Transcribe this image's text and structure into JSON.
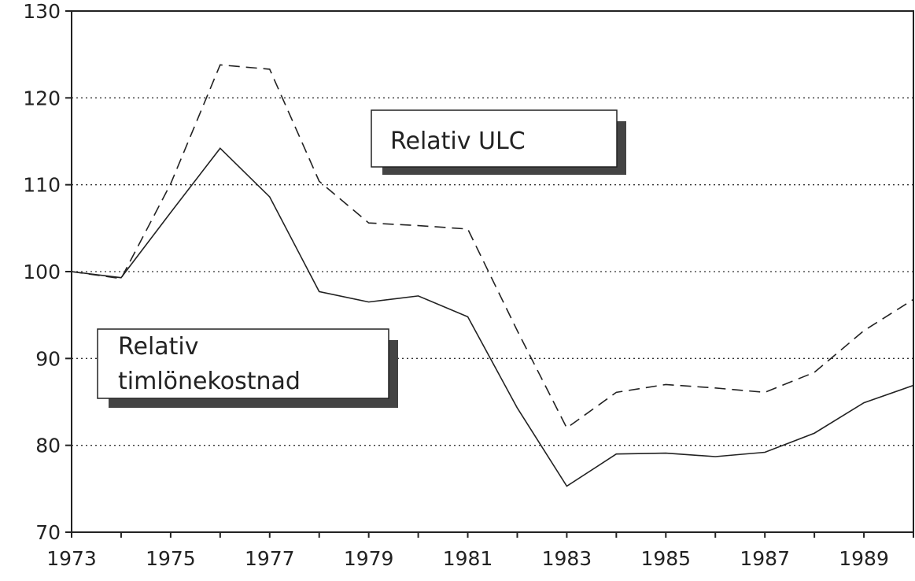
{
  "chart_data": {
    "type": "line",
    "title": "",
    "xlabel": "",
    "ylabel": "",
    "xlim": [
      1973,
      1990
    ],
    "ylim": [
      70,
      130
    ],
    "grid": "horizontal dotted",
    "x": [
      1973,
      1974,
      1975,
      1976,
      1977,
      1978,
      1979,
      1980,
      1981,
      1982,
      1983,
      1984,
      1985,
      1986,
      1987,
      1988,
      1989,
      1990
    ],
    "x_tick_labels": [
      "1973",
      "1975",
      "1977",
      "1979",
      "1981",
      "1983",
      "1985",
      "1987",
      "1989"
    ],
    "y_tick_labels": [
      "70",
      "80",
      "90",
      "100",
      "110",
      "120",
      "130"
    ],
    "series": [
      {
        "name": "Relativ ULC",
        "style": "dashed",
        "values": [
          100,
          99.2,
          110.1,
          123.8,
          123.3,
          110.4,
          105.6,
          105.3,
          104.9,
          93.2,
          82.0,
          86.1,
          87.0,
          86.6,
          86.1,
          88.4,
          93.2,
          96.8
        ]
      },
      {
        "name": "Relativ timlönekostnad",
        "style": "solid",
        "values": [
          100,
          99.3,
          106.8,
          114.2,
          108.6,
          97.7,
          96.5,
          97.2,
          94.8,
          84.3,
          75.3,
          79.0,
          79.1,
          78.7,
          79.2,
          81.4,
          84.9,
          86.9
        ]
      }
    ],
    "annotations": [
      {
        "text_lines": [
          "Relativ ULC"
        ],
        "series": 0
      },
      {
        "text_lines": [
          "Relativ",
          "timlönekostnad"
        ],
        "series": 1
      }
    ]
  }
}
